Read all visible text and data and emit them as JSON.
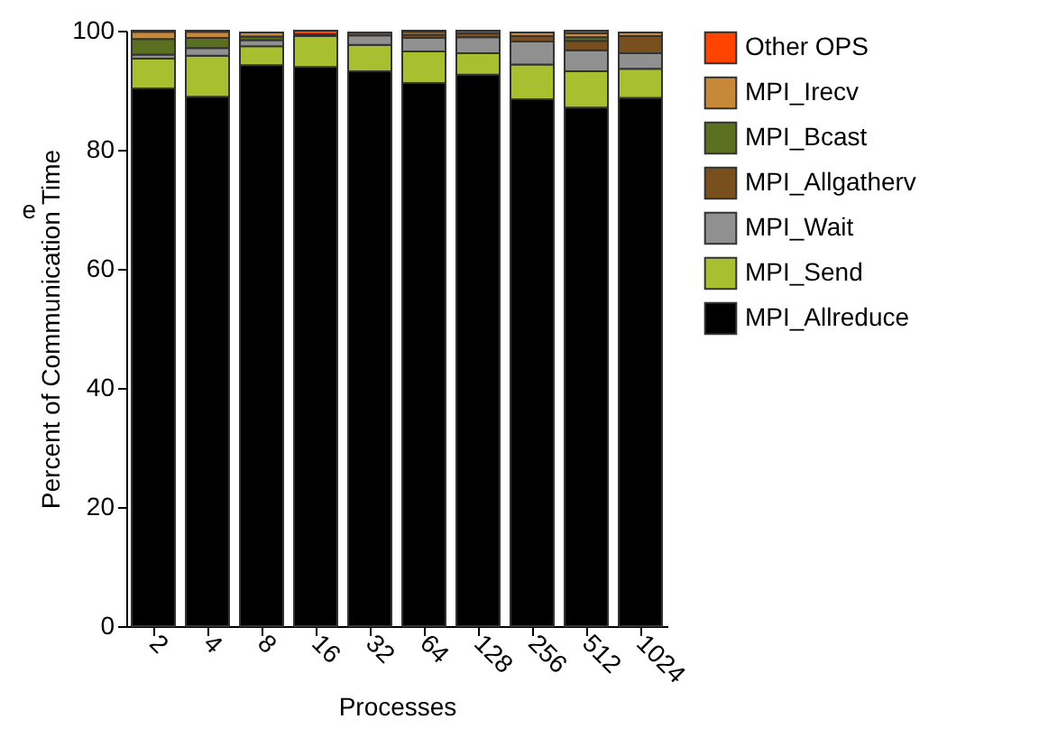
{
  "chart_data": {
    "type": "bar",
    "stacked": true,
    "xlabel": "Processes",
    "ylabel": "Percent of Communication Time",
    "annotations": [
      "e"
    ],
    "categories": [
      "2",
      "4",
      "8",
      "16",
      "32",
      "64",
      "128",
      "256",
      "512",
      "1024"
    ],
    "series": [
      {
        "name": "MPI_Allreduce",
        "color": "#000000",
        "values": [
          90.3,
          88.9,
          94.2,
          93.9,
          93.2,
          91.2,
          92.6,
          88.5,
          87.1,
          88.7
        ]
      },
      {
        "name": "MPI_Send",
        "color": "#a8c030",
        "values": [
          5.0,
          6.9,
          3.2,
          5.2,
          4.4,
          5.3,
          3.6,
          5.8,
          6.1,
          4.9
        ]
      },
      {
        "name": "MPI_Wait",
        "color": "#909090",
        "values": [
          0.7,
          1.3,
          1.0,
          0.3,
          1.6,
          2.3,
          2.7,
          3.9,
          3.5,
          2.6
        ]
      },
      {
        "name": "MPI_Allgatherv",
        "color": "#7a4f1e",
        "values": [
          null,
          null,
          null,
          null,
          0.5,
          0.5,
          0.7,
          0.9,
          1.6,
          2.9
        ]
      },
      {
        "name": "MPI_Bcast",
        "color": "#5a7020",
        "values": [
          2.6,
          1.7,
          0.6,
          null,
          null,
          null,
          null,
          null,
          0.6,
          null
        ]
      },
      {
        "name": "MPI_Irecv",
        "color": "#c8883a",
        "values": [
          1.2,
          1.0,
          0.7,
          null,
          null,
          0.5,
          null,
          0.6,
          0.7,
          0.6
        ]
      },
      {
        "name": "Other OPS",
        "color": "#ff4400",
        "values": [
          0.2,
          0.2,
          null,
          0.6,
          null,
          0.2,
          0.4,
          null,
          0.4,
          null
        ]
      }
    ],
    "ylim": [
      0,
      100
    ],
    "yticks": [
      0,
      20,
      40,
      60,
      80,
      100
    ],
    "legend": "right",
    "grid": false
  }
}
